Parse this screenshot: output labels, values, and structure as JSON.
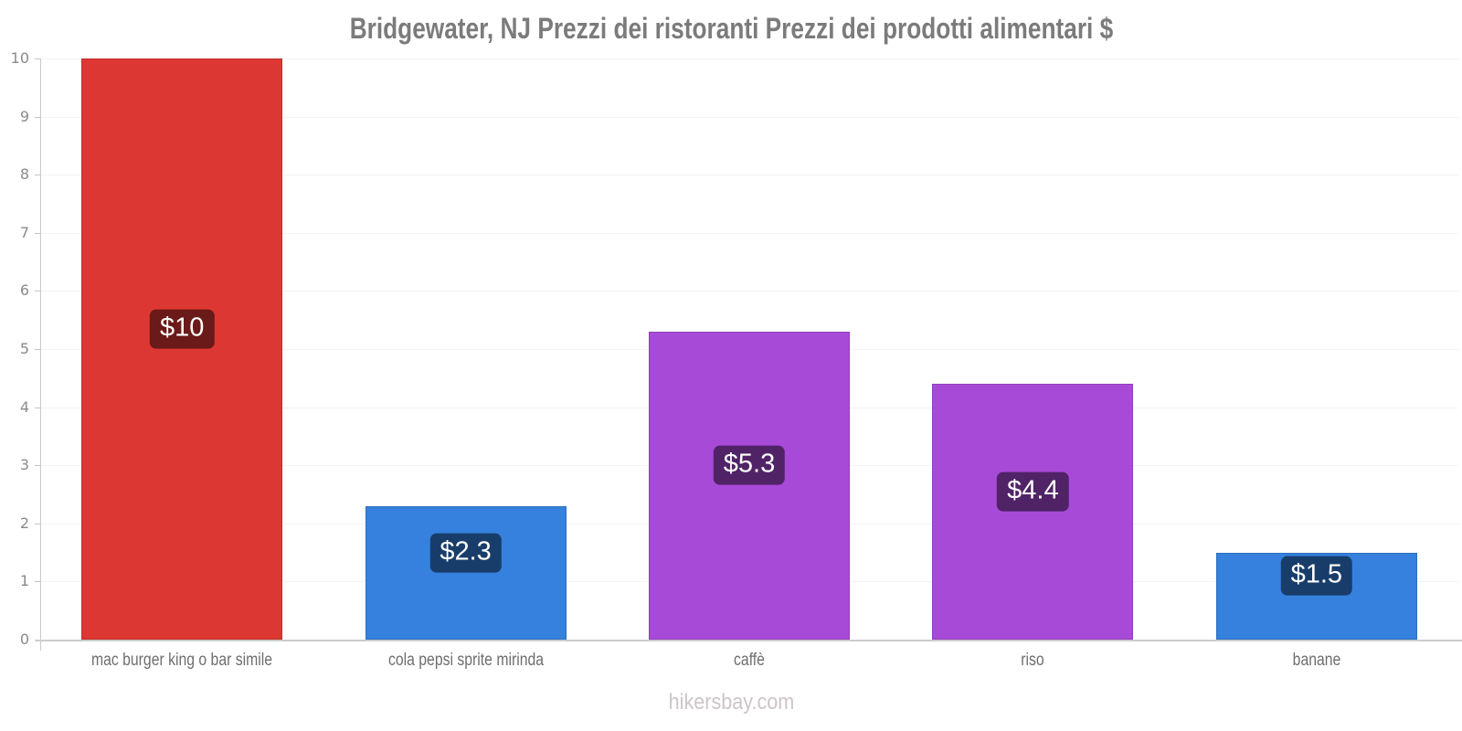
{
  "chart_data": {
    "type": "bar",
    "title": "Bridgewater, NJ Prezzi dei ristoranti Prezzi dei prodotti alimentari $",
    "categories": [
      "mac burger king o bar simile",
      "cola pepsi sprite mirinda",
      "caffè",
      "riso",
      "banane"
    ],
    "values": [
      10,
      2.3,
      5.3,
      4.4,
      1.5
    ],
    "value_labels": [
      "$10",
      "$2.3",
      "$5.3",
      "$4.4",
      "$1.5"
    ],
    "bar_colors": [
      "#dd3733",
      "#3581dd",
      "#a84ad8",
      "#a84ad8",
      "#3581dd"
    ],
    "currency": "$",
    "xlabel": "",
    "ylabel": "",
    "ylim": [
      0,
      10
    ],
    "yticks": [
      "0",
      "1",
      "2",
      "3",
      "4",
      "5",
      "6",
      "7",
      "8",
      "9",
      "10"
    ],
    "grid": "horizontal-faint",
    "legend": "none",
    "value_label_bg": "rgba(0,0,0,0.52)",
    "value_label_color": "#ffffff",
    "watermark": "hikersbay.com"
  }
}
